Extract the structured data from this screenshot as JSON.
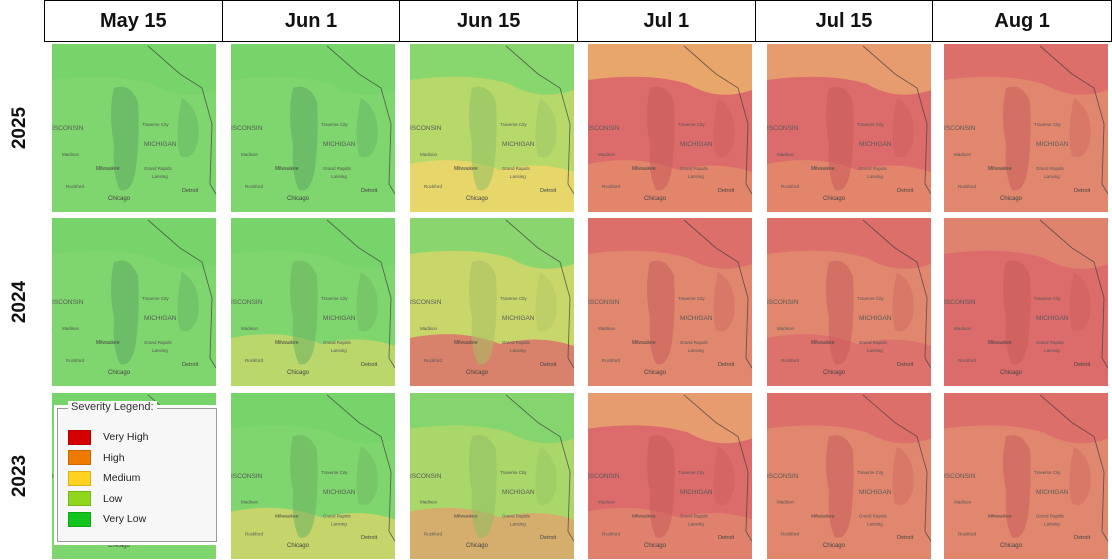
{
  "columns": [
    "May 15",
    "Jun 1",
    "Jun 15",
    "Jul 1",
    "Jul 15",
    "Aug 1"
  ],
  "rows": [
    "2025",
    "2024",
    "2023"
  ],
  "map_labels": {
    "state_wi": "ISCONSIN",
    "state_mi": "MICHIGAN",
    "city_milwaukee": "Milwaukee",
    "city_chicago": "Chicago",
    "city_detroit": "Detroit",
    "city_grand_rapids": "Grand Rapids",
    "city_lansing": "Lansing",
    "city_traverse": "Traverse City",
    "city_madison": "Madison",
    "city_rockford": "Rockford"
  },
  "legend": {
    "title": "Severity Legend:",
    "items": [
      {
        "label": "Very High",
        "color": "#d40000"
      },
      {
        "label": "High",
        "color": "#ee7a00"
      },
      {
        "label": "Medium",
        "color": "#ffd21f"
      },
      {
        "label": "Low",
        "color": "#8fd61c"
      },
      {
        "label": "Very Low",
        "color": "#12c41c"
      }
    ]
  },
  "tile_scheme": {
    "2025": [
      {
        "base": "#7fd56e",
        "north": "#76d36a",
        "south": "#7fd56e",
        "lake": "#5ea863"
      },
      {
        "base": "#7fd56e",
        "north": "#76d36a",
        "south": "#7fd56e",
        "lake": "#5ea863"
      },
      {
        "base": "#b7d96a",
        "north": "#7fd56e",
        "south": "#f3d66a",
        "lake": "#8fbf63"
      },
      {
        "base": "#dc6b6b",
        "north": "#ebb06a",
        "south": "#e48c6c",
        "lake": "#c95b5b"
      },
      {
        "base": "#dc6b6b",
        "north": "#e8a56e",
        "south": "#e48c6c",
        "lake": "#c95b5b"
      },
      {
        "base": "#e0876e",
        "north": "#dc6b6b",
        "south": "#e0876e",
        "lake": "#c95b5b"
      }
    ],
    "2024": [
      {
        "base": "#7fd56e",
        "north": "#76d36a",
        "south": "#7fd56e",
        "lake": "#5ea863"
      },
      {
        "base": "#7fd56e",
        "north": "#76d36a",
        "south": "#c9d76a",
        "lake": "#6bb060"
      },
      {
        "base": "#c9d76a",
        "north": "#7fd56e",
        "south": "#dc6b6b",
        "lake": "#a9c062"
      },
      {
        "base": "#e0876e",
        "north": "#dc6b6b",
        "south": "#e0876e",
        "lake": "#c95b5b"
      },
      {
        "base": "#e0876e",
        "north": "#dc6b6b",
        "south": "#dc6b6b",
        "lake": "#c95b5b"
      },
      {
        "base": "#dc6b6b",
        "north": "#e0876e",
        "south": "#dc6b6b",
        "lake": "#c95b5b"
      }
    ],
    "2023": [
      {
        "base": "#7fd56e",
        "north": "#76d36a",
        "south": "#7fd56e",
        "lake": "#5ea863"
      },
      {
        "base": "#7fd56e",
        "north": "#76d36a",
        "south": "#d8d46a",
        "lake": "#6bb060"
      },
      {
        "base": "#a9d76a",
        "north": "#7fd56e",
        "south": "#e0a46e",
        "lake": "#8fbf63"
      },
      {
        "base": "#dc6b6b",
        "north": "#e8a56e",
        "south": "#e0876e",
        "lake": "#c95b5b"
      },
      {
        "base": "#e0876e",
        "north": "#dc6b6b",
        "south": "#e0876e",
        "lake": "#c95b5b"
      },
      {
        "base": "#e0876e",
        "north": "#dc6b6b",
        "south": "#e0876e",
        "lake": "#c95b5b"
      }
    ]
  }
}
